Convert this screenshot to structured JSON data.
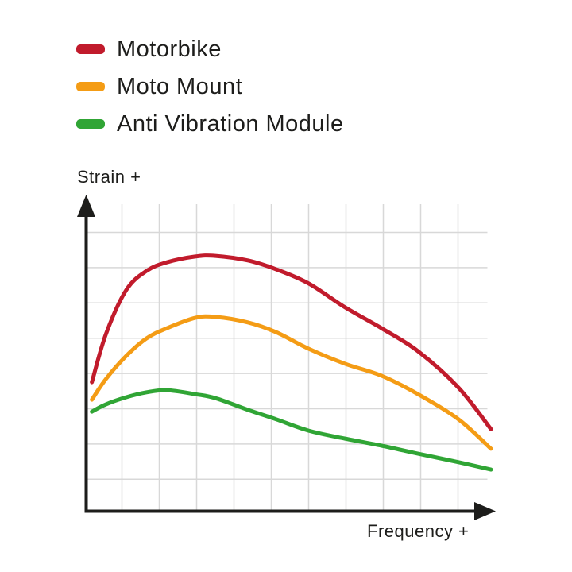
{
  "page": {
    "background": "#ffffff"
  },
  "legend": {
    "position": "top-left",
    "items": [
      {
        "label": "Motorbike",
        "color": "#c11b2c",
        "swatch_icon": "dash-swatch"
      },
      {
        "label": "Moto Mount",
        "color": "#f49c15",
        "swatch_icon": "dash-swatch"
      },
      {
        "label": "Anti Vibration Module",
        "color": "#30a535",
        "swatch_icon": "dash-swatch"
      }
    ]
  },
  "axes": {
    "y_label": "Strain +",
    "x_label": "Frequency +",
    "axis_color": "#1d1d1b",
    "grid_color": "#d8d8d8",
    "arrows": "both axes end in solid arrowheads"
  },
  "chart_data": {
    "type": "line",
    "title": "",
    "xlabel": "Frequency +",
    "ylabel": "Strain +",
    "x_range": [
      0,
      100
    ],
    "y_range": [
      0,
      100
    ],
    "grid": true,
    "legend_position": "top-left",
    "note": "Axes are qualitative (no tick values); series values are relative strain estimated from gridlines, 0-100 scale",
    "x": [
      1.5,
      5,
      10,
      15,
      20,
      27,
      32,
      40,
      47,
      55,
      64,
      73,
      82,
      92,
      100
    ],
    "series": [
      {
        "name": "Motorbike",
        "color": "#c11b2c",
        "values": [
          42.2,
          58.0,
          72.3,
          78.5,
          81.3,
          83.2,
          83.4,
          81.9,
          79.0,
          74.4,
          66.6,
          59.8,
          52.3,
          40.4,
          26.9
        ]
      },
      {
        "name": "Moto Mount",
        "color": "#f49c15",
        "values": [
          36.5,
          43.3,
          50.8,
          56.5,
          59.8,
          63.2,
          63.5,
          61.7,
          58.5,
          53.1,
          48.2,
          44.3,
          38.3,
          30.1,
          20.5
        ]
      },
      {
        "name": "Anti Vibration Module",
        "color": "#30a535",
        "values": [
          32.6,
          35.0,
          37.3,
          38.9,
          39.6,
          38.3,
          37.0,
          33.2,
          30.1,
          26.4,
          23.8,
          21.5,
          18.9,
          16.1,
          13.7
        ]
      }
    ]
  }
}
